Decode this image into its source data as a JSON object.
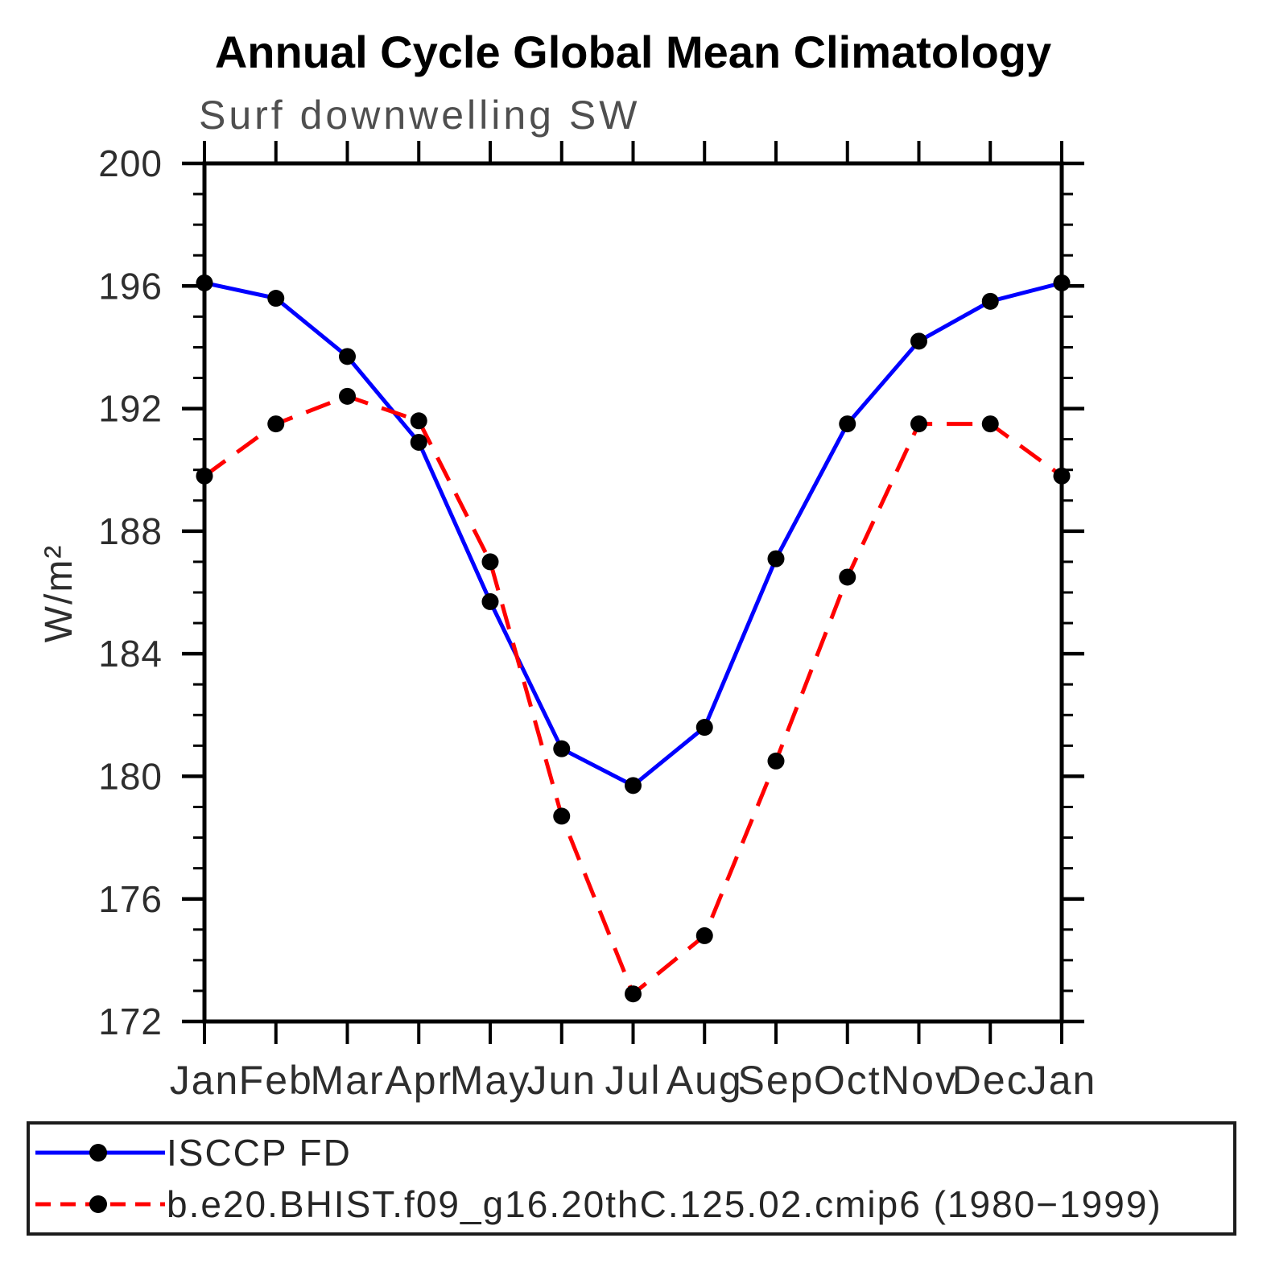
{
  "chart_data": {
    "type": "line",
    "title": "Annual Cycle Global Mean Climatology",
    "subtitle": "Surf downwelling SW",
    "ylabel": "W/m²",
    "xlabel": "",
    "categories": [
      "Jan",
      "Feb",
      "Mar",
      "Apr",
      "May",
      "Jun",
      "Jul",
      "Aug",
      "Sep",
      "Oct",
      "Nov",
      "Dec",
      "Jan"
    ],
    "ylim": [
      172,
      200
    ],
    "yticks": [
      200,
      196,
      192,
      188,
      184,
      180,
      176,
      172
    ],
    "ytick_minor_step": 1,
    "grid": false,
    "legend_position": "bottom-box",
    "frame_color": "#000000",
    "text_color": "#2e2e2e",
    "series": [
      {
        "name": "ISCCP FD",
        "color": "#0000ff",
        "line_style": "solid",
        "marker": "filled-circle",
        "marker_color": "#000000",
        "values": [
          196.1,
          195.6,
          193.7,
          190.9,
          185.7,
          180.9,
          179.7,
          181.6,
          187.1,
          191.5,
          194.2,
          195.5,
          196.1
        ]
      },
      {
        "name": "b.e20.BHIST.f09_g16.20thC.125.02.cmip6 (1980−1999)",
        "color": "#ff0000",
        "line_style": "dashed",
        "marker": "filled-circle",
        "marker_color": "#000000",
        "values": [
          189.8,
          191.5,
          192.4,
          191.6,
          187.0,
          178.7,
          172.9,
          174.8,
          180.5,
          186.5,
          191.5,
          191.5,
          189.8
        ]
      }
    ]
  }
}
